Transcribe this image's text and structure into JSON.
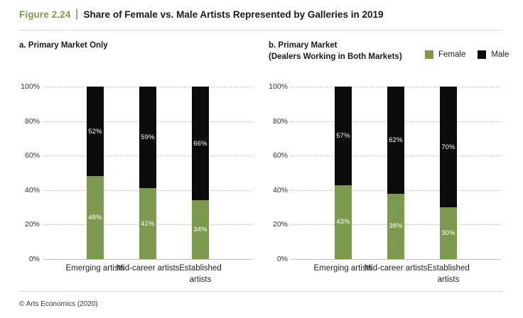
{
  "header": {
    "figure_label": "Figure 2.24",
    "separator": "|",
    "title": "Share of Female vs. Male Artists Represented by Galleries in 2019"
  },
  "legend": {
    "items": [
      {
        "label": "Female",
        "color": "#7c9a4d"
      },
      {
        "label": "Male",
        "color": "#0b0b0b"
      }
    ]
  },
  "footer": {
    "copyright": "© Arts Economics (2020)"
  },
  "chart_data": [
    {
      "type": "bar",
      "stacked": true,
      "title_lines": [
        "a. Primary Market Only"
      ],
      "categories": [
        "Emerging artists",
        "Mid-career artists",
        "Established artists"
      ],
      "series": [
        {
          "name": "Female",
          "color": "#7c9a4d",
          "values": [
            48,
            41,
            34
          ]
        },
        {
          "name": "Male",
          "color": "#0b0b0b",
          "values": [
            52,
            59,
            66
          ]
        }
      ],
      "value_label_suffix": "%",
      "ylim": [
        0,
        100
      ],
      "yticks": [
        0,
        20,
        40,
        60,
        80,
        100
      ],
      "ytick_labels": [
        "0%",
        "20%",
        "40%",
        "60%",
        "80%",
        "100%"
      ],
      "grid": "horizontal-dotted",
      "legend_position": "top-right-of-figure"
    },
    {
      "type": "bar",
      "stacked": true,
      "title_lines": [
        "b. Primary Market",
        "(Dealers Working in Both Markets)"
      ],
      "categories": [
        "Emerging artists",
        "Mid-career artists",
        "Established artists"
      ],
      "series": [
        {
          "name": "Female",
          "color": "#7c9a4d",
          "values": [
            43,
            38,
            30
          ]
        },
        {
          "name": "Male",
          "color": "#0b0b0b",
          "values": [
            57,
            62,
            70
          ]
        }
      ],
      "value_label_suffix": "%",
      "ylim": [
        0,
        100
      ],
      "yticks": [
        0,
        20,
        40,
        60,
        80,
        100
      ],
      "ytick_labels": [
        "0%",
        "20%",
        "40%",
        "60%",
        "80%",
        "100%"
      ],
      "grid": "horizontal-dotted",
      "legend_position": "top-right-of-figure"
    }
  ]
}
